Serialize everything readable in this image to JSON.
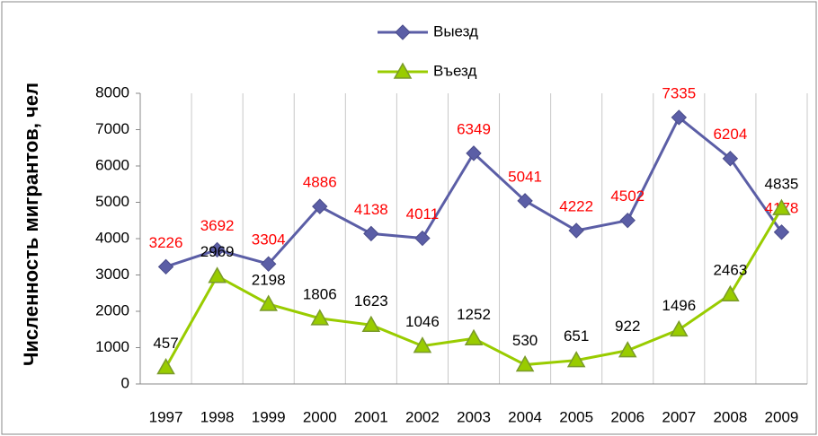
{
  "chart_data": {
    "type": "line",
    "y_label": "Численность мигрантов, чел",
    "categories": [
      "1997",
      "1998",
      "1999",
      "2000",
      "2001",
      "2002",
      "2003",
      "2004",
      "2005",
      "2006",
      "2007",
      "2008",
      "2009"
    ],
    "series": [
      {
        "name": "Выезд",
        "color": "#5b5ea6",
        "label_color": "#ff0000",
        "marker": "diamond",
        "values": [
          3226,
          3692,
          3304,
          4886,
          4138,
          4011,
          6349,
          5041,
          4222,
          4502,
          7335,
          6204,
          4178
        ]
      },
      {
        "name": "Въезд",
        "color": "#99cc00",
        "label_color": "#000000",
        "marker": "triangle",
        "values": [
          457,
          2969,
          2198,
          1806,
          1623,
          1046,
          1252,
          530,
          651,
          922,
          1496,
          2463,
          4835
        ]
      }
    ],
    "ylim": [
      0,
      8000
    ],
    "yticks": [
      0,
      1000,
      2000,
      3000,
      4000,
      5000,
      6000,
      7000,
      8000
    ],
    "grid": true,
    "legend": "top"
  }
}
